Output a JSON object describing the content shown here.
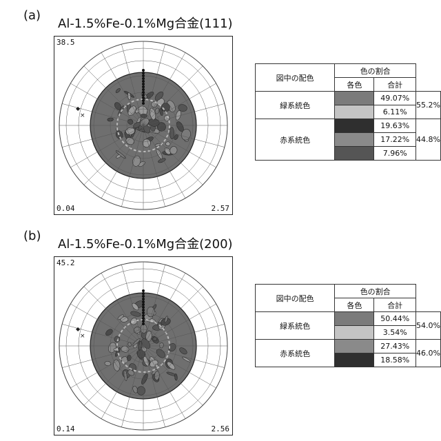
{
  "panels": [
    {
      "label": "(a)",
      "title": "Al-1.5%Fe-0.1%Mg合金(111)",
      "max": "38.5",
      "min": "0.04",
      "scale": "2.57",
      "legend": {
        "header_left": "図中の配色",
        "header_right": "色の割合",
        "sub_each": "各色",
        "sub_total": "合計",
        "groups": [
          {
            "name": "緑系統色",
            "total": "55.2%",
            "rows": [
              {
                "color": "#7b7b7b",
                "pct": "49.07%"
              },
              {
                "color": "#c4c4c4",
                "pct": "6.11%"
              }
            ]
          },
          {
            "name": "赤系統色",
            "total": "44.8%",
            "rows": [
              {
                "color": "#2f2f2f",
                "pct": "19.63%"
              },
              {
                "color": "#8a8a8a",
                "pct": "17.22%"
              },
              {
                "color": "#555555",
                "pct": "7.96%"
              }
            ]
          }
        ]
      }
    },
    {
      "label": "(b)",
      "title": "Al-1.5%Fe-0.1%Mg合金(200)",
      "max": "45.2",
      "min": "0.14",
      "scale": "2.56",
      "legend": {
        "header_left": "図中の配色",
        "header_right": "色の割合",
        "sub_each": "各色",
        "sub_total": "合計",
        "groups": [
          {
            "name": "緑系統色",
            "total": "54.0%",
            "rows": [
              {
                "color": "#7b7b7b",
                "pct": "50.44%"
              },
              {
                "color": "#c4c4c4",
                "pct": "3.54%"
              }
            ]
          },
          {
            "name": "赤系統色",
            "total": "46.0%",
            "rows": [
              {
                "color": "#8a8a8a",
                "pct": "27.43%"
              },
              {
                "color": "#2f2f2f",
                "pct": "18.58%"
              }
            ]
          }
        ]
      }
    }
  ]
}
